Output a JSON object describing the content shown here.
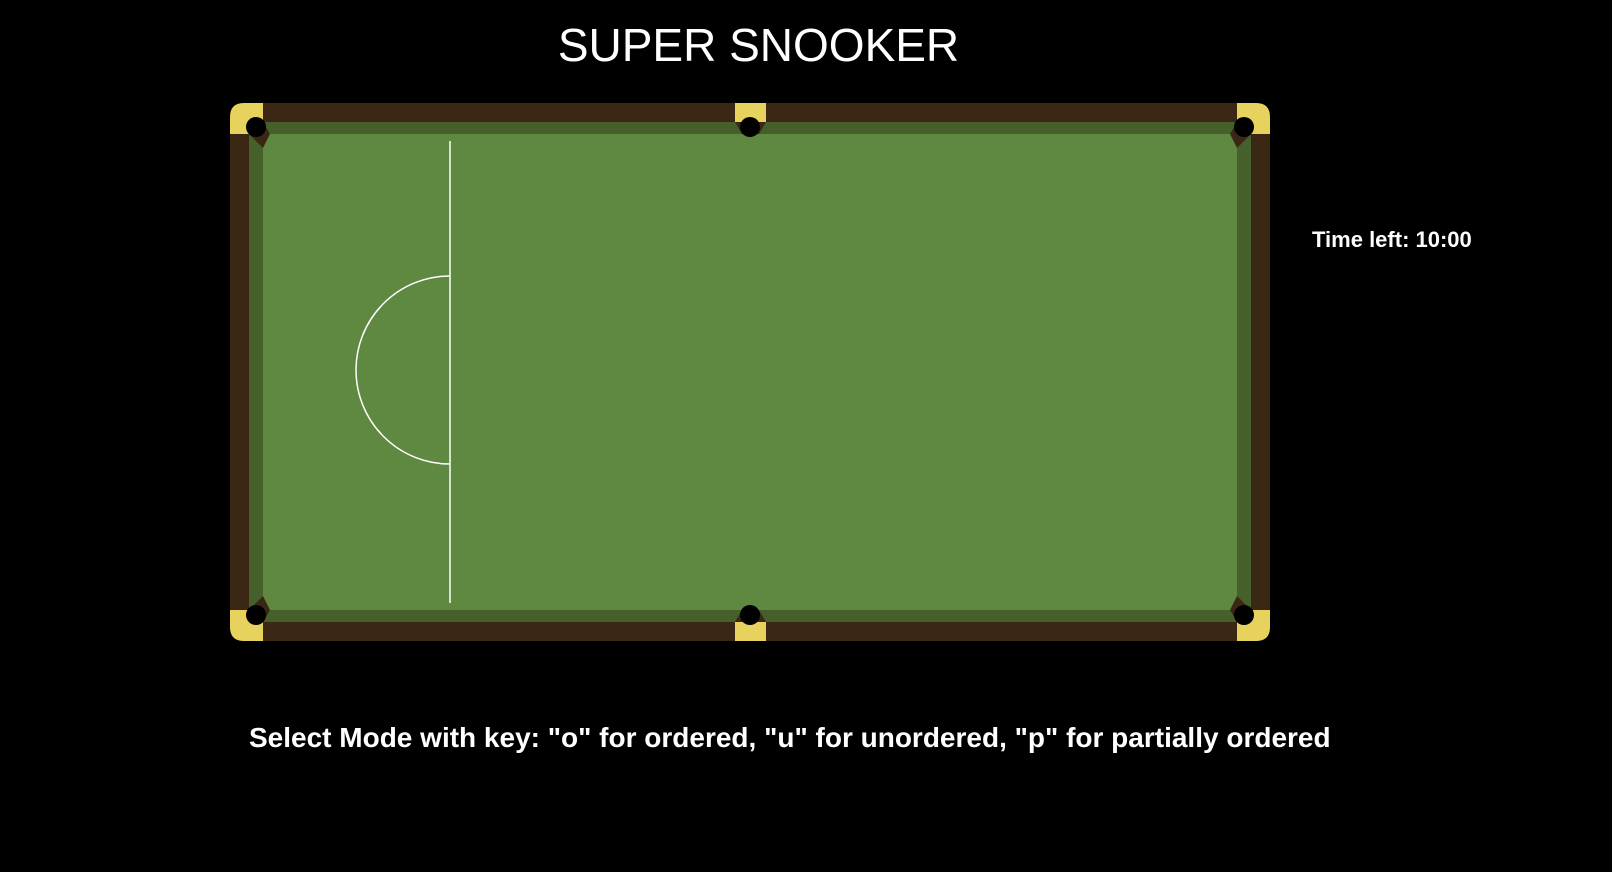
{
  "game": {
    "title": "SUPER SNOOKER",
    "timer_text": "Time left: 10:00",
    "mode_prompt": "Select Mode with key: \"o\" for ordered, \"u\" for unordered, \"p\" for partially ordered"
  },
  "table": {
    "colors": {
      "rail": "#3a2714",
      "pocket_plate": "#e8d25e",
      "cushion": "#45602a",
      "cloth": "#5f8840",
      "pocket": "#000000",
      "markings": "#ffffff"
    },
    "pockets": [
      "top-left",
      "top-middle",
      "top-right",
      "bottom-left",
      "bottom-middle",
      "bottom-right"
    ]
  }
}
